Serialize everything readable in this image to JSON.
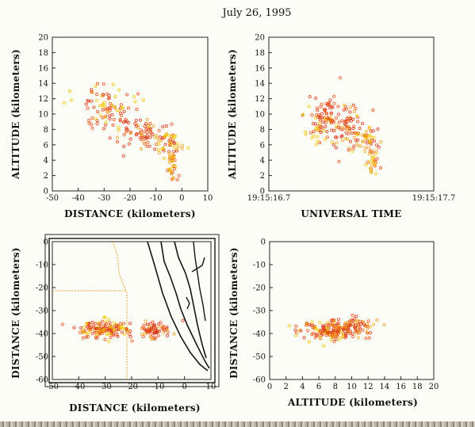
{
  "title": "July 26, 1995",
  "colors": {
    "warm": "#f5c400",
    "hot": "#e84a14",
    "deep": "#d63010",
    "map_line": "#e8a030",
    "river": "#151515"
  },
  "chart_data": [
    {
      "id": "p1",
      "type": "scatter",
      "xlabel": "DISTANCE (kilometers)",
      "ylabel": "ALTITUDE (kilometers)",
      "xlim": [
        -50,
        10
      ],
      "ylim": [
        0,
        20
      ],
      "xticks": [
        -50,
        -40,
        -30,
        -20,
        -10,
        0,
        10
      ],
      "yticks": [
        0,
        2,
        4,
        6,
        8,
        10,
        12,
        14,
        16,
        18,
        20
      ],
      "clusters": [
        {
          "name": "",
          "n": 90,
          "cx": -29,
          "cy": 10.5,
          "sx": 5,
          "sy": 1.7
        },
        {
          "name": "",
          "n": 70,
          "cx": -16,
          "cy": 7.5,
          "sx": 5,
          "sy": 1.0
        },
        {
          "name": "",
          "n": 50,
          "cx": -5,
          "cy": 6.0,
          "sx": 2.5,
          "sy": 0.8
        },
        {
          "name": "",
          "n": 30,
          "cx": -3.5,
          "cy": 3.2,
          "sx": 1.0,
          "sy": 1.0
        }
      ]
    },
    {
      "id": "p2",
      "type": "scatter",
      "xlabel": "UNIVERSAL TIME",
      "ylabel": "ALTITUDE (kilometers)",
      "xlim": [
        0,
        1
      ],
      "ylim": [
        0,
        20
      ],
      "xticks": [
        0,
        1
      ],
      "xticklabels": [
        "19:15:16.7",
        "19:15:17.7"
      ],
      "yticks": [
        0,
        2,
        4,
        6,
        8,
        10,
        12,
        14,
        16,
        18,
        20
      ],
      "clusters": [
        {
          "name": "",
          "n": 100,
          "cx": 0.35,
          "cy": 9.5,
          "sx": 0.06,
          "sy": 1.6
        },
        {
          "name": "",
          "n": 60,
          "cx": 0.48,
          "cy": 8.0,
          "sx": 0.05,
          "sy": 1.5
        },
        {
          "name": "",
          "n": 45,
          "cx": 0.58,
          "cy": 6.5,
          "sx": 0.04,
          "sy": 1.0
        },
        {
          "name": "",
          "n": 30,
          "cx": 0.63,
          "cy": 4.0,
          "sx": 0.02,
          "sy": 1.2
        }
      ]
    },
    {
      "id": "p3",
      "type": "scatter",
      "xlabel": "DISTANCE (kilometers)",
      "ylabel": "DISTANCE (kilometers)",
      "xlim": [
        -50,
        10
      ],
      "ylim": [
        -60,
        0
      ],
      "xticks": [
        -50,
        -40,
        -30,
        -20,
        -10,
        0,
        10
      ],
      "yticks": [
        0,
        -10,
        -20,
        -30,
        -40,
        -50,
        -60
      ],
      "clusters": [
        {
          "name": "",
          "n": 140,
          "cx": -30,
          "cy": -38,
          "sx": 5,
          "sy": 2.0
        },
        {
          "name": "",
          "n": 70,
          "cx": -11,
          "cy": -38.5,
          "sx": 3,
          "sy": 2.0
        }
      ]
    },
    {
      "id": "p4",
      "type": "scatter",
      "xlabel": "ALTITUDE (kilometers)",
      "ylabel": "DISTANCE (kilometers)",
      "xlim": [
        0,
        20
      ],
      "ylim": [
        -60,
        0
      ],
      "xticks": [
        0,
        2,
        4,
        6,
        8,
        10,
        12,
        14,
        16,
        18,
        20
      ],
      "yticks": [
        0,
        -10,
        -20,
        -30,
        -40,
        -50,
        -60
      ],
      "clusters": [
        {
          "name": "",
          "n": 150,
          "cx": 7.5,
          "cy": -39,
          "sx": 1.8,
          "sy": 2.2
        },
        {
          "name": "",
          "n": 70,
          "cx": 10.5,
          "cy": -37,
          "sx": 1.3,
          "sy": 2.0
        }
      ]
    }
  ]
}
